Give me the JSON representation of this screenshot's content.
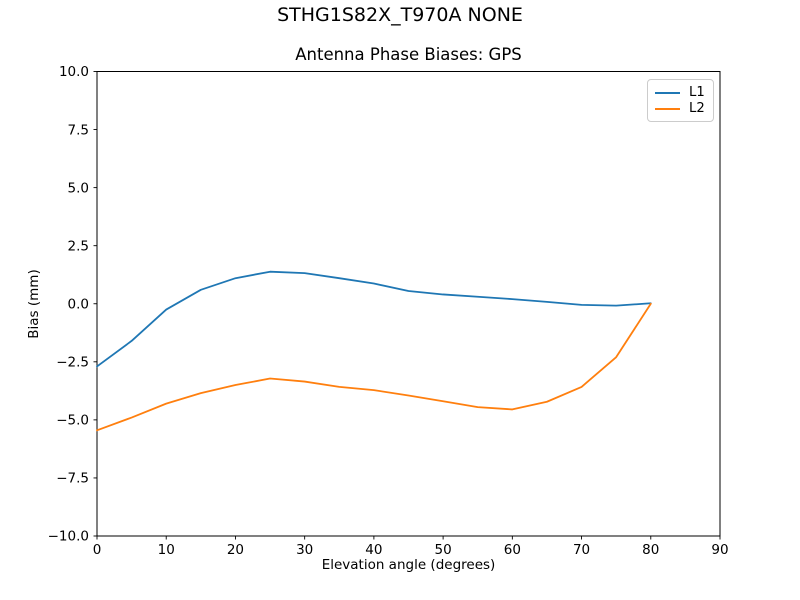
{
  "figure": {
    "suptitle": "STHG1S82X_T970A NONE",
    "title": "Antenna Phase Biases: GPS"
  },
  "axes": {
    "xlabel": "Elevation angle (degrees)",
    "ylabel": "Bias (mm)"
  },
  "legend": {
    "position": "upper right",
    "items": [
      {
        "label": "L1",
        "color": "#1f77b4"
      },
      {
        "label": "L2",
        "color": "#ff7f0e"
      }
    ]
  },
  "chart_data": {
    "type": "line",
    "suptitle": "STHG1S82X_T970A NONE",
    "title": "Antenna Phase Biases: GPS",
    "xlabel": "Elevation angle (degrees)",
    "ylabel": "Bias (mm)",
    "xlim": [
      0,
      90
    ],
    "ylim": [
      -10,
      10
    ],
    "grid": false,
    "legend_position": "upper right",
    "x": [
      0,
      5,
      10,
      15,
      20,
      25,
      30,
      35,
      40,
      45,
      50,
      55,
      60,
      65,
      70,
      75,
      80
    ],
    "series": [
      {
        "name": "L1",
        "color": "#1f77b4",
        "values": [
          -2.7,
          -1.6,
          -0.25,
          0.6,
          1.1,
          1.38,
          1.32,
          1.1,
          0.87,
          0.55,
          0.4,
          0.3,
          0.2,
          0.08,
          -0.05,
          -0.08,
          0.02
        ]
      },
      {
        "name": "L2",
        "color": "#ff7f0e",
        "values": [
          -5.45,
          -4.9,
          -4.3,
          -3.85,
          -3.5,
          -3.22,
          -3.35,
          -3.58,
          -3.72,
          -3.95,
          -4.2,
          -4.45,
          -4.55,
          -4.22,
          -3.58,
          -2.3,
          0.0
        ]
      }
    ],
    "xticks": {
      "values": [
        0,
        10,
        20,
        30,
        40,
        50,
        60,
        70,
        80,
        90
      ],
      "labels": [
        "0",
        "10",
        "20",
        "30",
        "40",
        "50",
        "60",
        "70",
        "80",
        "90"
      ]
    },
    "yticks": {
      "values": [
        -10,
        -7.5,
        -5,
        -2.5,
        0,
        2.5,
        5,
        7.5,
        10
      ],
      "labels": [
        "−10.0",
        "−7.5",
        "−5.0",
        "−2.5",
        "0.0",
        "2.5",
        "5.0",
        "7.5",
        "10.0"
      ]
    }
  }
}
